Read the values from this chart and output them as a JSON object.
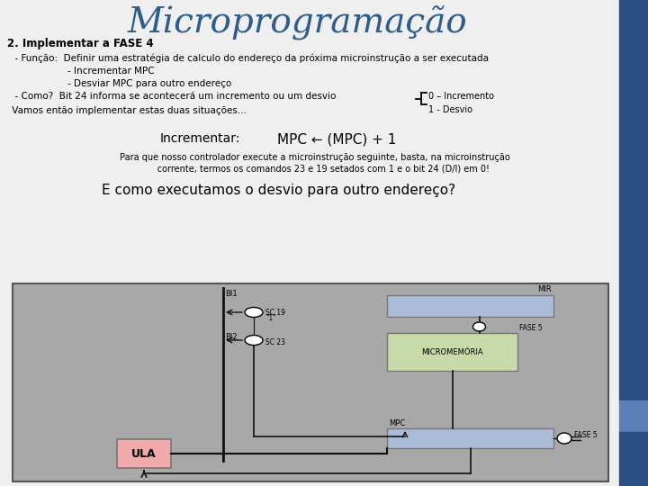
{
  "title": "Microprogramação",
  "title_color": "#2F5D8A",
  "title_fontsize": 28,
  "bg_color": "#EFEFEF",
  "right_bar_dark": "#2B4F82",
  "right_bar_mid": "#5B80B8",
  "right_bar_light": "#7A9EC9",
  "heading": "2. Implementar a FASE 4",
  "line1a": "- Função:  ",
  "line1b": "Definir uma estratégia de calculo do endereço da próxima microinstrução a ser executada",
  "line2": "             - Incrementar MPC",
  "line3": "             - Desviar MPC para outro endereço",
  "line4": "- Como?  Bit 24 informa se acontecerá um incremento ou um desvio",
  "brace_text1": "0 – Incremento",
  "brace_text2": "1 - Desvio",
  "line5": " Vamos então implementar estas duas situações...",
  "incrementar_label": "Incrementar:",
  "incrementar_formula": "MPC ← (MPC) + 1",
  "para_que_text": "Para que nosso controlador execute a microinstrução seguinte, basta, na microinstrução\n      corrente, termos os comandos 23 e 19 setados com 1 e o bit 24 (D/I) em 0!",
  "e_como_text": "E como executamos o desvio para outro endereço?",
  "diagram_bg": "#A8A8A8",
  "diagram_border": "#555555",
  "mir_color": "#AABDD8",
  "micromem_color": "#C8DAAA",
  "mpc_color": "#AABDD8",
  "ula_color": "#F0AAAA",
  "wire_color": "#111111",
  "label_color": "#111111"
}
